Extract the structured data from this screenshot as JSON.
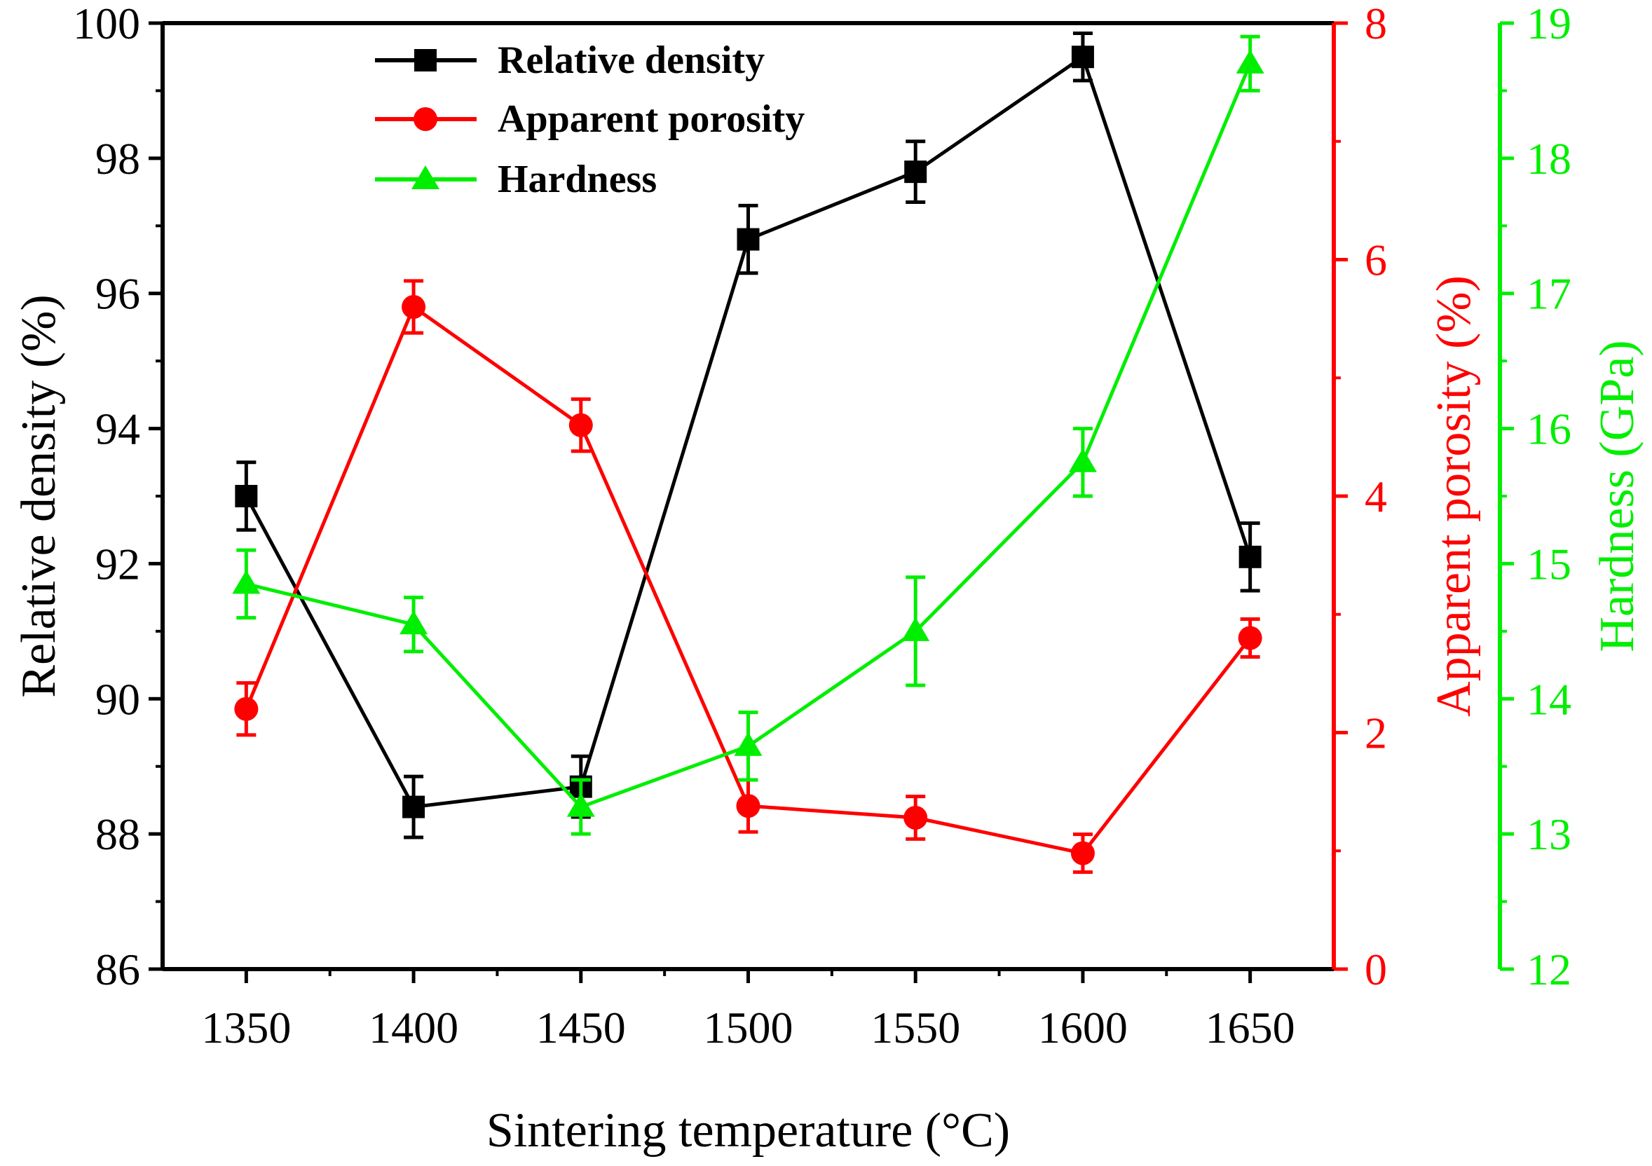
{
  "chart_data": {
    "type": "line",
    "xlabel": "Sintering temperature (°C)",
    "x": [
      1350,
      1400,
      1450,
      1500,
      1550,
      1600,
      1650
    ],
    "xlim": [
      1325,
      1675
    ],
    "series": [
      {
        "name": "Relative density",
        "axis": "left",
        "marker": "square",
        "color": "#000000",
        "values": [
          93.0,
          88.4,
          88.7,
          96.8,
          97.8,
          99.5,
          92.1
        ],
        "errors": [
          0.5,
          0.45,
          0.45,
          0.5,
          0.45,
          0.35,
          0.5
        ]
      },
      {
        "name": "Apparent porosity",
        "axis": "right",
        "marker": "circle",
        "color": "#ff0000",
        "values": [
          2.2,
          5.6,
          4.6,
          1.38,
          1.28,
          0.98,
          2.8
        ],
        "errors": [
          0.22,
          0.22,
          0.22,
          0.22,
          0.18,
          0.16,
          0.16
        ]
      },
      {
        "name": "Hardness",
        "axis": "right2",
        "marker": "triangle",
        "color": "#00ee00",
        "values": [
          14.85,
          14.55,
          13.2,
          13.65,
          14.5,
          15.75,
          18.7
        ],
        "errors": [
          0.25,
          0.2,
          0.2,
          0.25,
          0.4,
          0.25,
          0.2
        ]
      }
    ],
    "axes": {
      "left": {
        "label": "Relative density (%)",
        "min": 86,
        "max": 100,
        "ticks": [
          86,
          88,
          90,
          92,
          94,
          96,
          98,
          100
        ],
        "color": "#000000"
      },
      "right": {
        "label": "Apparent porosity (%)",
        "min": 0,
        "max": 8,
        "ticks": [
          0,
          2,
          4,
          6,
          8
        ],
        "color": "#ff0000"
      },
      "right2": {
        "label": "Hardness (GPa)",
        "min": 12,
        "max": 19,
        "ticks": [
          12,
          13,
          14,
          15,
          16,
          17,
          18,
          19
        ],
        "color": "#00ee00"
      }
    },
    "legend": {
      "position": "top-center",
      "entries": [
        "Relative density",
        "Apparent porosity",
        "Hardness"
      ]
    },
    "grid": false
  }
}
